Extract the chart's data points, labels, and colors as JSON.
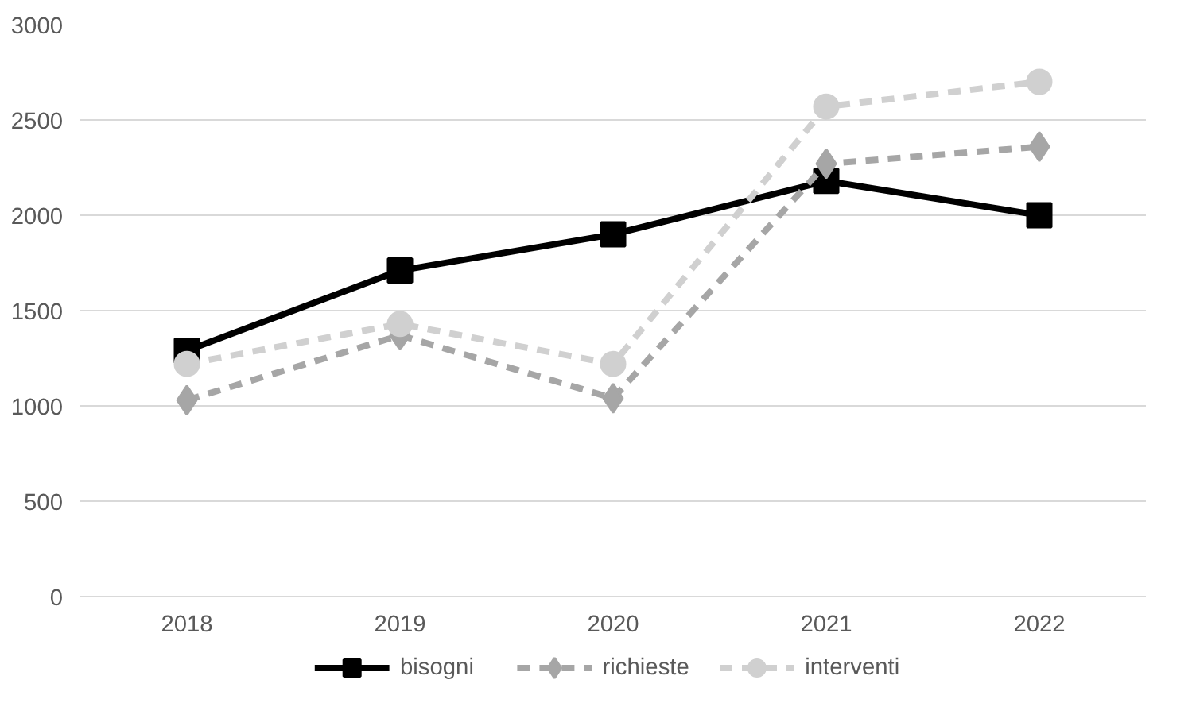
{
  "chart_data": {
    "type": "line",
    "categories": [
      "2018",
      "2019",
      "2020",
      "2021",
      "2022"
    ],
    "series": [
      {
        "name": "bisogni",
        "color": "#000000",
        "marker": "square",
        "line_style": "solid",
        "values": [
          1290,
          1710,
          1900,
          2180,
          2000
        ]
      },
      {
        "name": "richieste",
        "color": "#a6a6a6",
        "marker": "diamond",
        "line_style": "dashed",
        "values": [
          1030,
          1370,
          1040,
          2270,
          2360
        ]
      },
      {
        "name": "interventi",
        "color": "#d0d0d0",
        "marker": "circle",
        "line_style": "dashed",
        "values": [
          1220,
          1430,
          1220,
          2570,
          2700
        ]
      }
    ],
    "ylim": [
      0,
      3000
    ],
    "yticks": [
      0,
      500,
      1000,
      1500,
      2000,
      2500,
      3000
    ],
    "grid": "y",
    "legend": "bottom"
  }
}
